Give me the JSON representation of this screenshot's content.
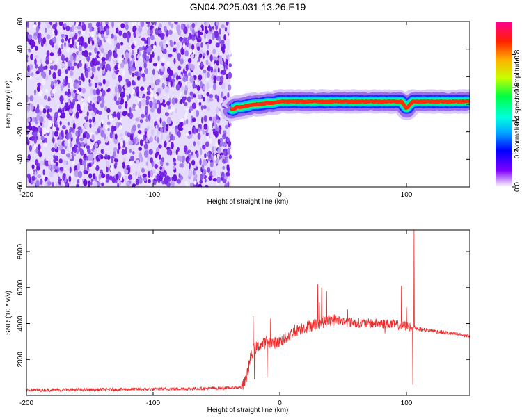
{
  "title": "GN04.2025.031.13.26.E19",
  "colors": {
    "snr_line": "#ee2a2a",
    "axes": "#000000",
    "colormap": [
      "#ffffff",
      "#7f00ff",
      "#0000ff",
      "#00aaff",
      "#00ffdd",
      "#00ff40",
      "#c8ff00",
      "#ffb000",
      "#ff2000",
      "#ff0090"
    ]
  },
  "chart_data": [
    {
      "type": "heatmap",
      "name": "spectrogram",
      "title": "GN04.2025.031.13.26.E19",
      "xlabel": "Height of straight line (km)",
      "ylabel": "Frequency (Hz)",
      "xlim": [
        -200,
        150
      ],
      "ylim": [
        -60,
        60
      ],
      "xticks": [
        -200,
        -100,
        0,
        100
      ],
      "yticks": [
        60,
        40,
        20,
        0,
        -20,
        -40,
        -60
      ],
      "noise_region_x": [
        -200,
        -39
      ],
      "signal_track": {
        "x": [
          -39,
          -37,
          -34,
          -30,
          -25,
          -20,
          -15,
          -10,
          -5,
          0,
          10,
          20,
          30,
          40,
          50,
          60,
          70,
          80,
          90,
          96,
          100,
          105,
          120,
          150
        ],
        "freq": [
          -3,
          -4,
          -2,
          -2,
          -1,
          0,
          0,
          1,
          1,
          2,
          2,
          2,
          2,
          2,
          2,
          2,
          2,
          2,
          2,
          2,
          -3,
          2,
          2,
          2
        ]
      },
      "colorbar": {
        "label": "Normalized spectral amplitude",
        "ticks": [
          "0.0",
          "0.2",
          "0.4",
          "0.6",
          "0.8"
        ],
        "range": [
          0,
          1
        ]
      }
    },
    {
      "type": "line",
      "name": "snr",
      "xlabel": "Height of straight line (km)",
      "ylabel": "SNR (10 * v/v)",
      "xlim": [
        -200,
        150
      ],
      "ylim": [
        0,
        9200
      ],
      "xticks": [
        -200,
        -100,
        0,
        100
      ],
      "yticks": [
        2000,
        4000,
        6000,
        8000
      ],
      "series": [
        {
          "name": "SNR",
          "x": [
            -200,
            -150,
            -100,
            -50,
            -30,
            -27,
            -25,
            -23,
            -20,
            -15,
            -10,
            -5,
            0,
            5,
            10,
            15,
            20,
            25,
            30,
            35,
            40,
            45,
            50,
            60,
            70,
            80,
            90,
            100,
            104,
            106,
            110,
            120,
            130,
            140,
            150
          ],
          "y": [
            300,
            320,
            350,
            400,
            450,
            800,
            1500,
            2100,
            2600,
            2800,
            3000,
            2900,
            3000,
            3200,
            3500,
            3700,
            3800,
            3900,
            4000,
            4100,
            4200,
            4200,
            4100,
            4050,
            4000,
            4000,
            3950,
            3850,
            3800,
            3800,
            3700,
            3600,
            3500,
            3400,
            3300
          ]
        }
      ],
      "spikes": [
        {
          "x": -21,
          "y": 4400
        },
        {
          "x": -10,
          "y": 5300
        },
        {
          "x": 30,
          "y": 6200
        },
        {
          "x": 33,
          "y": 6000
        },
        {
          "x": 96,
          "y": 6100
        },
        {
          "x": 100,
          "y": 4900
        },
        {
          "x": 106,
          "y": 9200
        }
      ],
      "dips": [
        {
          "x": -20,
          "y": 900
        },
        {
          "x": -10,
          "y": 1000
        },
        {
          "x": 31,
          "y": 400
        },
        {
          "x": 105,
          "y": 600
        }
      ]
    }
  ]
}
